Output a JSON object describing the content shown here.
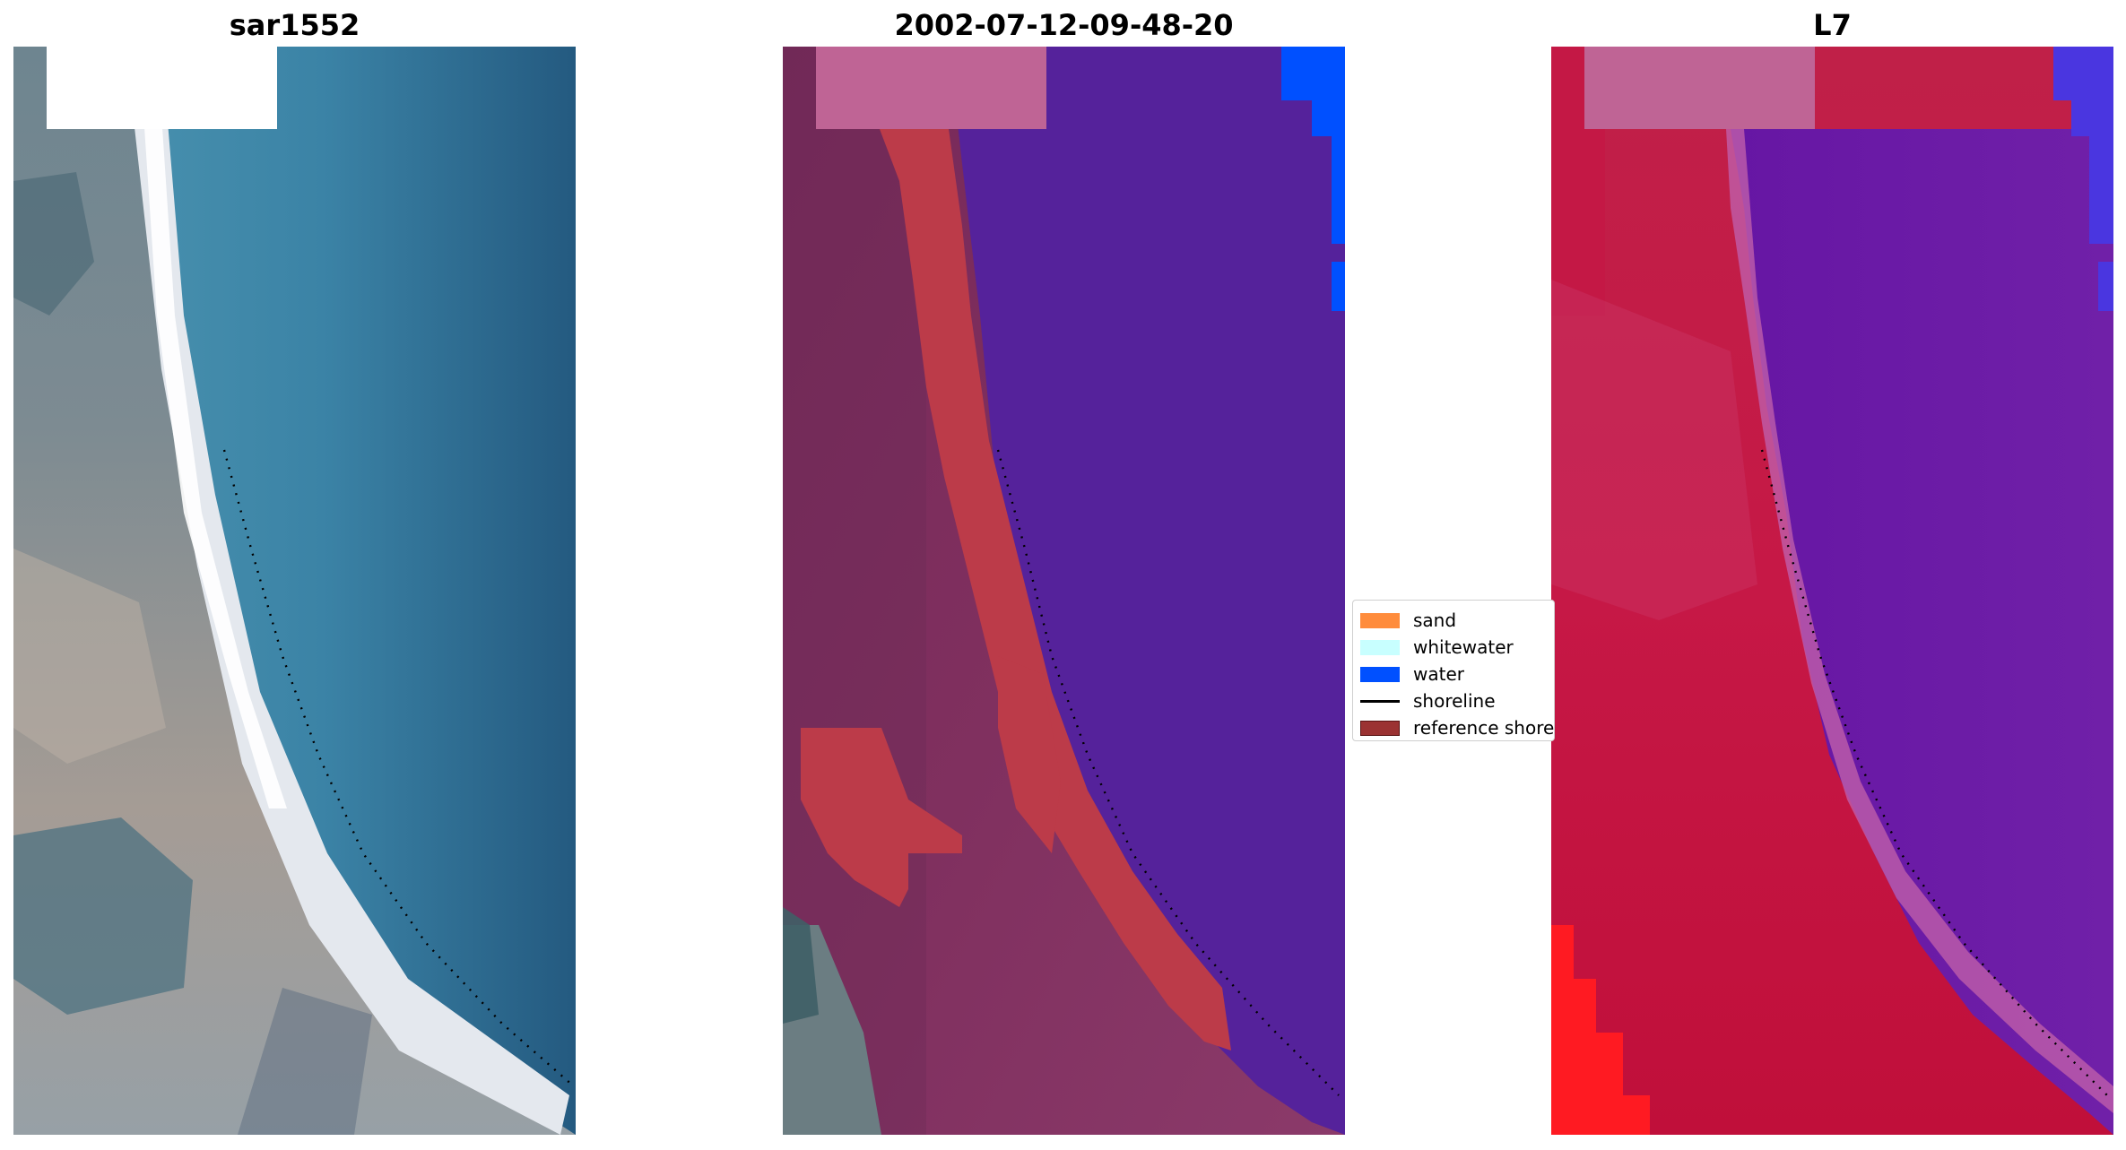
{
  "panels": [
    {
      "title": "sar1552"
    },
    {
      "title": "2002-07-12-09-48-20"
    },
    {
      "title": "L7"
    }
  ],
  "legend": {
    "items": [
      {
        "label": "sand",
        "kind": "patch",
        "color": "#ff8c3c",
        "edge": "#ff8c3c"
      },
      {
        "label": "whitewater",
        "kind": "patch",
        "color": "#c8ffff",
        "edge": "#c8ffff"
      },
      {
        "label": "water",
        "kind": "patch",
        "color": "#0050ff",
        "edge": "#0050ff"
      },
      {
        "label": "shoreline",
        "kind": "line",
        "color": "#000000",
        "edge": "#000000"
      },
      {
        "label": "reference shoreline buffer",
        "kind": "patch",
        "color": "#9b3232",
        "edge": "#5a1414"
      }
    ]
  },
  "colors": {
    "water_class": "#0050ff",
    "water_overlay": "#55229b",
    "reference_buffer": "#bc3b49",
    "false_color_sand": "#c81446",
    "false_color_water": "#6a1aa4",
    "cloud_mask_white": "#ffffff",
    "cloud_mask_pink": "#bf6495"
  }
}
